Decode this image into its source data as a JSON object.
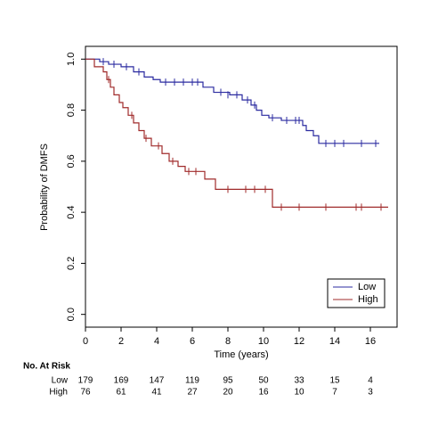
{
  "chart_data": {
    "type": "km",
    "xlabel": "Time (years)",
    "ylabel": "Probability of DMFS",
    "xlim": [
      0,
      17.5
    ],
    "ylim": [
      -0.05,
      1.05
    ],
    "xticks": [
      0,
      2,
      4,
      6,
      8,
      10,
      12,
      14,
      16
    ],
    "yticks": [
      {
        "value": 0,
        "label": "0.0"
      },
      {
        "value": 0.2,
        "label": "0.2"
      },
      {
        "value": 0.4,
        "label": "0.4"
      },
      {
        "value": 0.6,
        "label": "0.6"
      },
      {
        "value": 0.8,
        "label": "0.8"
      },
      {
        "value": 1,
        "label": "1.0"
      }
    ],
    "legend": "bottom-right",
    "series": [
      {
        "name": "Low",
        "color": "#2b2ba0",
        "x": [
          0,
          0.8,
          1.3,
          2,
          2.7,
          3.3,
          3.8,
          4.2,
          6.6,
          7.2,
          8.1,
          8.8,
          9.3,
          9.6,
          9.9,
          10.3,
          11.0,
          12.2,
          12.4,
          12.8,
          13.1,
          16.5
        ],
        "values": [
          1.0,
          0.99,
          0.98,
          0.97,
          0.95,
          0.93,
          0.92,
          0.91,
          0.89,
          0.87,
          0.86,
          0.84,
          0.82,
          0.8,
          0.78,
          0.77,
          0.76,
          0.74,
          0.72,
          0.7,
          0.67,
          0.67
        ],
        "censor_x": [
          1.0,
          1.6,
          2.3,
          3.0,
          4.5,
          5.0,
          5.5,
          6.0,
          6.3,
          7.6,
          8.0,
          8.5,
          9.1,
          9.5,
          10.5,
          11.3,
          11.8,
          12.0,
          13.5,
          14.0,
          14.5,
          15.5,
          16.3
        ],
        "censor_y": [
          0.99,
          0.98,
          0.97,
          0.95,
          0.91,
          0.91,
          0.91,
          0.91,
          0.91,
          0.87,
          0.86,
          0.86,
          0.84,
          0.82,
          0.77,
          0.76,
          0.76,
          0.76,
          0.67,
          0.67,
          0.67,
          0.67,
          0.67
        ]
      },
      {
        "name": "High",
        "color": "#a02b2b",
        "x": [
          0,
          0.5,
          1.0,
          1.2,
          1.4,
          1.6,
          1.9,
          2.1,
          2.4,
          2.7,
          3.0,
          3.3,
          3.7,
          4.3,
          4.7,
          5.2,
          5.6,
          6.7,
          7.3,
          10.5,
          17.0
        ],
        "values": [
          1.0,
          0.97,
          0.95,
          0.92,
          0.89,
          0.86,
          0.83,
          0.81,
          0.78,
          0.75,
          0.72,
          0.69,
          0.66,
          0.63,
          0.6,
          0.58,
          0.56,
          0.53,
          0.49,
          0.42,
          0.42
        ],
        "censor_x": [
          1.3,
          2.6,
          3.4,
          4.1,
          4.9,
          5.8,
          6.2,
          8.0,
          9.0,
          9.5,
          10.1,
          11.0,
          12.0,
          13.5,
          15.2,
          15.5,
          16.6
        ],
        "censor_y": [
          0.92,
          0.78,
          0.69,
          0.66,
          0.6,
          0.56,
          0.56,
          0.49,
          0.49,
          0.49,
          0.49,
          0.42,
          0.42,
          0.42,
          0.42,
          0.42,
          0.42
        ]
      }
    ],
    "risk_table": {
      "title": "No. At Risk",
      "rows": [
        {
          "name": "Low",
          "values": [
            179,
            169,
            147,
            119,
            95,
            50,
            33,
            15,
            4
          ]
        },
        {
          "name": "High",
          "values": [
            76,
            61,
            41,
            27,
            20,
            16,
            10,
            7,
            3
          ]
        }
      ]
    }
  }
}
